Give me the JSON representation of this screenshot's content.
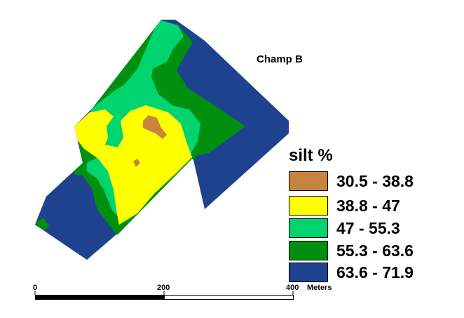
{
  "map": {
    "title": "Champ B",
    "legend": {
      "title": "silt %",
      "classes": [
        {
          "label": "30.5 - 38.8",
          "color": "#c8843f"
        },
        {
          "label": "38.8 - 47",
          "color": "#ffff00"
        },
        {
          "label": "47 - 55.3",
          "color": "#00d46e"
        },
        {
          "label": "55.3 - 63.6",
          "color": "#009010"
        },
        {
          "label": "63.6 - 71.9",
          "color": "#1f428f"
        }
      ]
    },
    "scale_bar": {
      "ticks": [
        "0",
        "200",
        "400"
      ],
      "unit": "Meters"
    }
  }
}
